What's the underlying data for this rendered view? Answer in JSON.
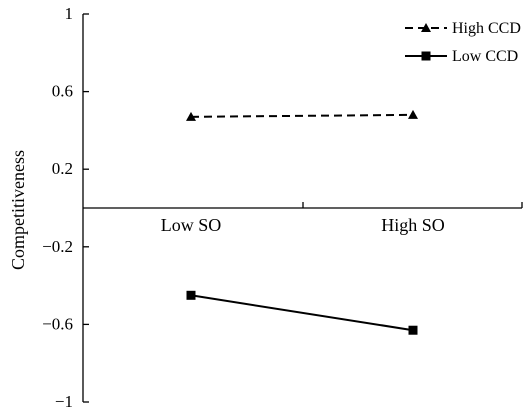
{
  "chart_data": {
    "type": "line",
    "categories": [
      "Low SO",
      "High SO"
    ],
    "series": [
      {
        "name": "High CCD",
        "values": [
          0.47,
          0.48
        ],
        "marker": "triangle",
        "dash": "dashed"
      },
      {
        "name": "Low CCD",
        "values": [
          -0.45,
          -0.63
        ],
        "marker": "square",
        "dash": "solid"
      }
    ],
    "ylabel": "Competitiveness",
    "ylim": [
      -1,
      1
    ],
    "yticks": [
      1,
      0.6,
      0.2,
      -0.2,
      -0.6,
      -1
    ],
    "ytick_labels": [
      "1",
      "0.6",
      "0.2",
      "−0.2",
      "−0.6",
      "−1"
    ],
    "grid": false,
    "legend_position": "top-right",
    "colors": {
      "line": "#000000",
      "axis": "#000000"
    }
  }
}
